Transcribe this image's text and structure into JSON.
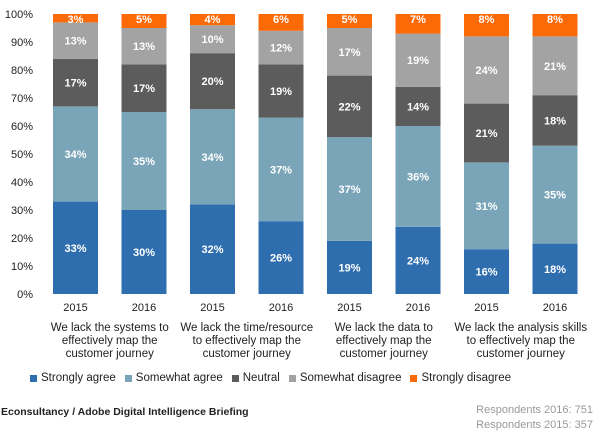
{
  "chart_data": {
    "type": "bar",
    "stacked": true,
    "ylim": [
      0,
      100
    ],
    "yticks": [
      "0%",
      "10%",
      "20%",
      "30%",
      "40%",
      "50%",
      "60%",
      "70%",
      "80%",
      "90%",
      "100%"
    ],
    "categories": [
      "2015",
      "2016",
      "2015",
      "2016",
      "2015",
      "2016",
      "2015",
      "2016"
    ],
    "groups": [
      "We lack the systems to effectively map the customer journey",
      "We lack the time/resource to effectively map the customer journey",
      "We lack the data to effectively map the customer journey",
      "We lack the analysis skills to effectively map the customer journey"
    ],
    "series": [
      {
        "name": "Strongly agree",
        "color": "#2e6eaf",
        "values": [
          33,
          30,
          32,
          26,
          19,
          24,
          16,
          18
        ]
      },
      {
        "name": "Somewhat agree",
        "color": "#7aa5b8",
        "values": [
          34,
          35,
          34,
          37,
          37,
          36,
          31,
          35
        ]
      },
      {
        "name": "Neutral",
        "color": "#5c5c5c",
        "values": [
          17,
          17,
          20,
          19,
          22,
          14,
          21,
          18
        ]
      },
      {
        "name": "Somewhat disagree",
        "color": "#a3a3a3",
        "values": [
          13,
          13,
          10,
          12,
          17,
          19,
          24,
          21
        ]
      },
      {
        "name": "Strongly disagree",
        "color": "#fc6a08",
        "values": [
          3,
          5,
          4,
          6,
          5,
          7,
          8,
          8
        ]
      }
    ],
    "legend_position": "bottom"
  },
  "footer": {
    "source": "Econsultancy / Adobe Digital Intelligence Briefing",
    "respondents_2016": "Respondents 2016: 751",
    "respondents_2015": "Respondents 2015: 357"
  }
}
